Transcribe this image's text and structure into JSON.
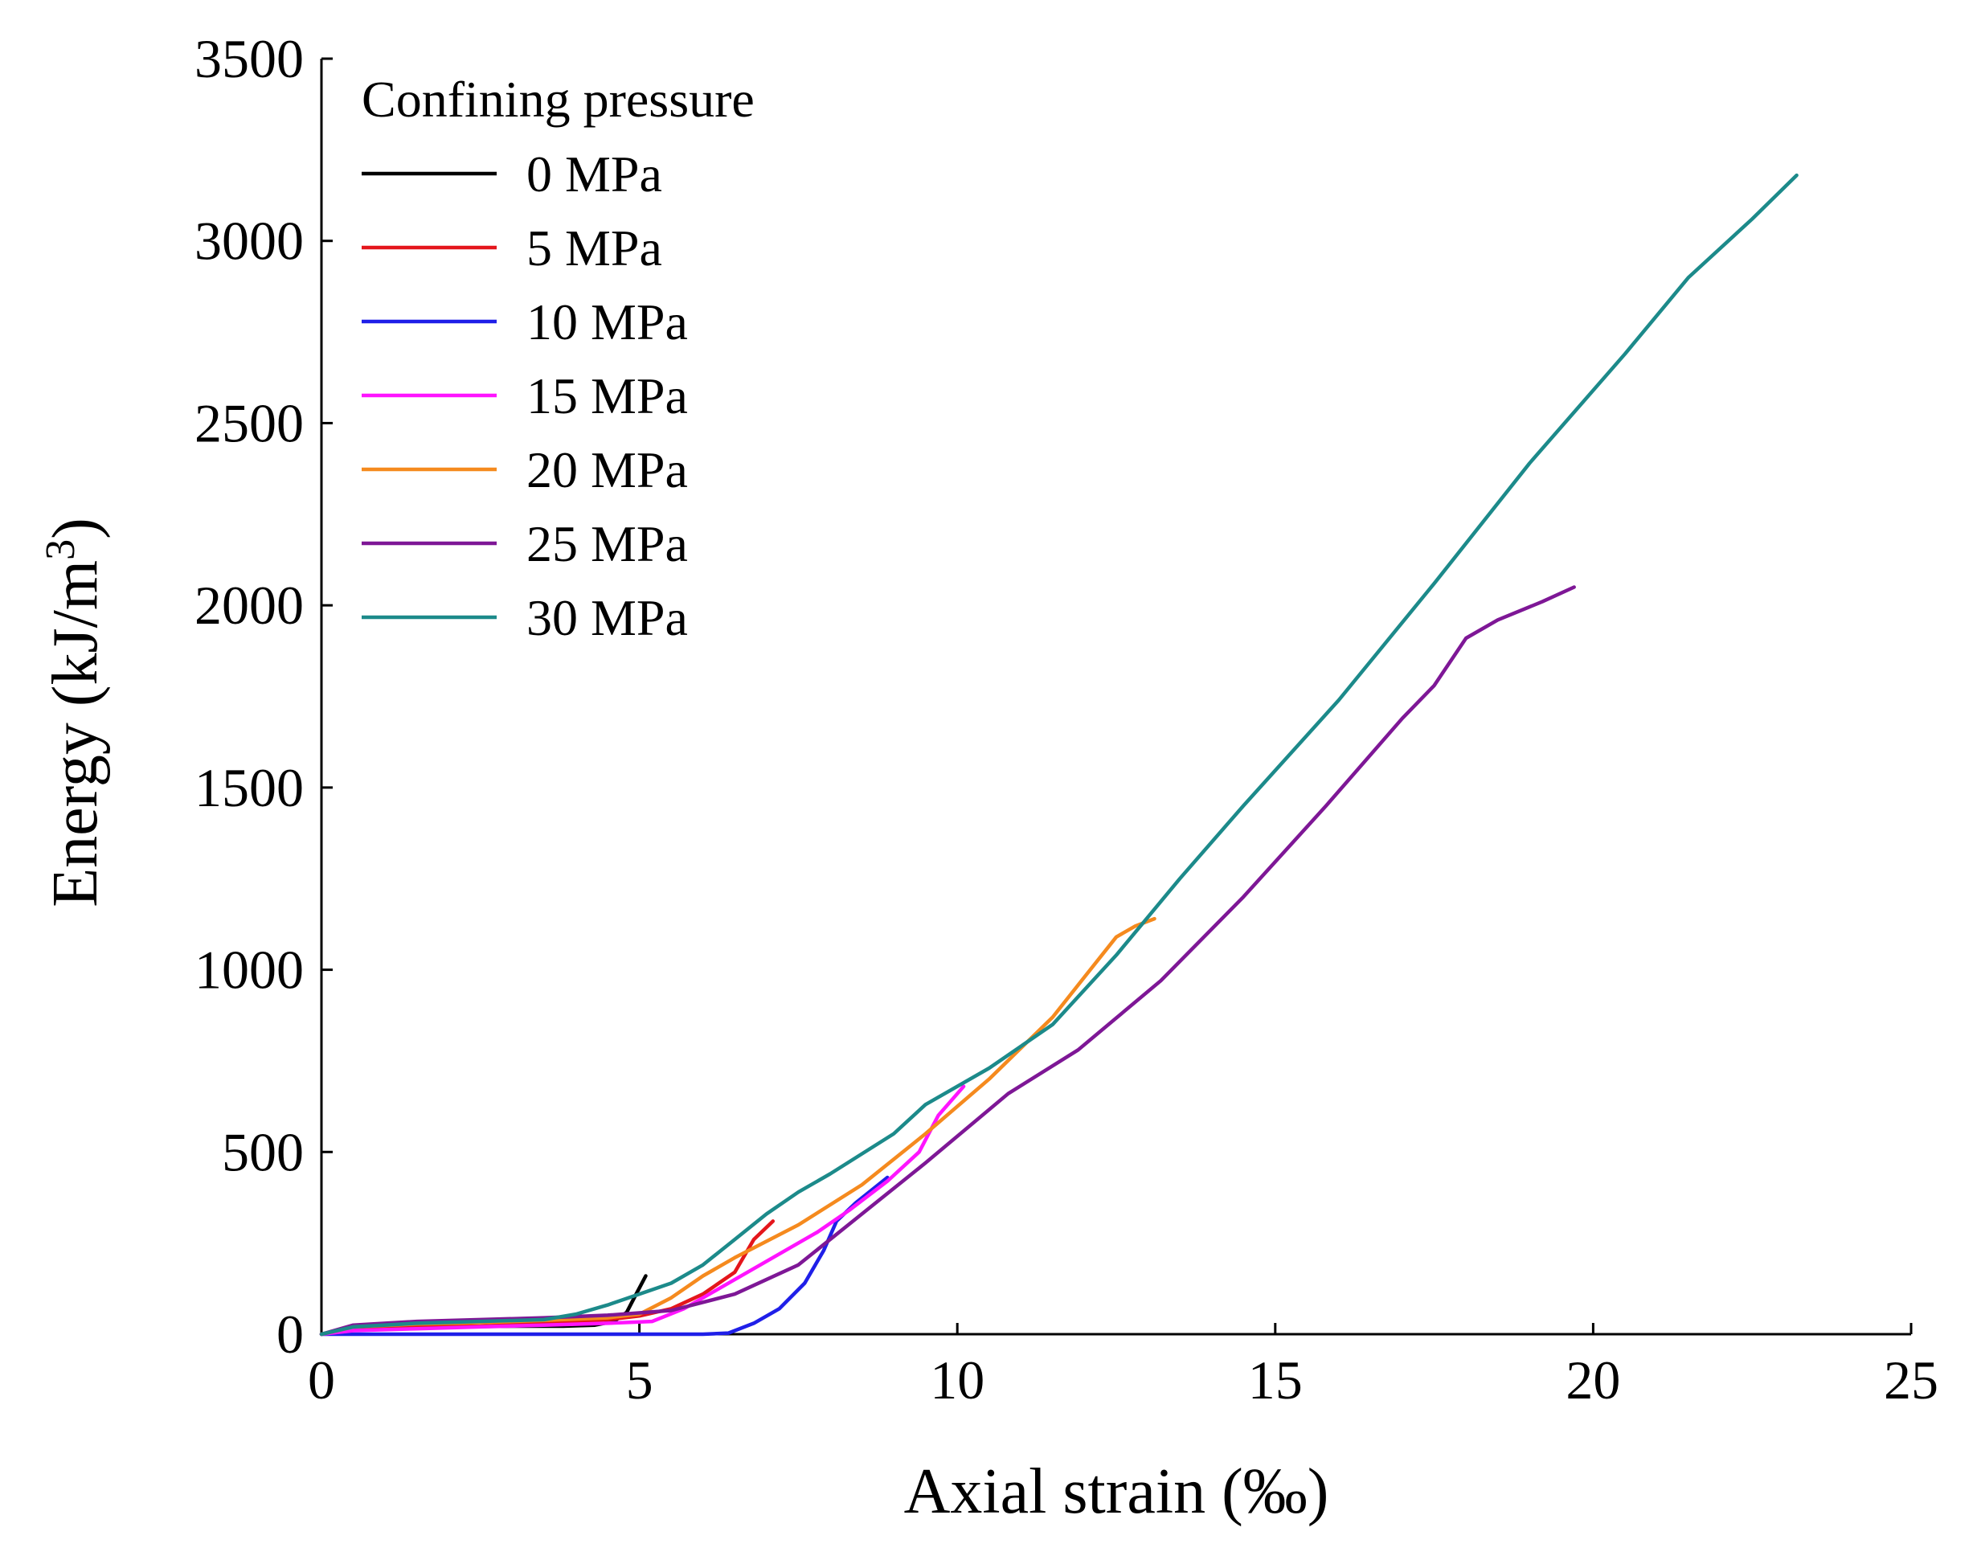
{
  "chart_data": {
    "type": "line",
    "xlabel": "Axial strain (‰)",
    "ylabel_main": "Energy (kJ/m",
    "ylabel_sup": "3",
    "ylabel_close": ")",
    "xlim": [
      0,
      25
    ],
    "ylim": [
      0,
      3500
    ],
    "xticks": [
      0,
      5,
      10,
      15,
      20,
      25
    ],
    "yticks": [
      0,
      500,
      1000,
      1500,
      2000,
      2500,
      3000,
      3500
    ],
    "grid": false,
    "legend": {
      "title": "Confining pressure",
      "position": "top-left"
    },
    "series": [
      {
        "name": "0 MPa",
        "color": "#000000",
        "points": [
          [
            0,
            0
          ],
          [
            0.4,
            15
          ],
          [
            1,
            18
          ],
          [
            2,
            20
          ],
          [
            3,
            22
          ],
          [
            3.8,
            22
          ],
          [
            4.3,
            25
          ],
          [
            4.6,
            35
          ],
          [
            4.8,
            60
          ],
          [
            4.95,
            110
          ],
          [
            5.1,
            160
          ]
        ]
      },
      {
        "name": "5 MPa",
        "color": "#e4161c",
        "points": [
          [
            0,
            0
          ],
          [
            0.5,
            15
          ],
          [
            1.5,
            20
          ],
          [
            2.5,
            22
          ],
          [
            3.5,
            30
          ],
          [
            4.5,
            40
          ],
          [
            5,
            50
          ],
          [
            5.5,
            70
          ],
          [
            6,
            110
          ],
          [
            6.5,
            170
          ],
          [
            6.8,
            260
          ],
          [
            7.1,
            310
          ]
        ]
      },
      {
        "name": "10 MPa",
        "color": "#1f1fe8",
        "points": [
          [
            0,
            0
          ],
          [
            2,
            0
          ],
          [
            4,
            0
          ],
          [
            5,
            0
          ],
          [
            6,
            0
          ],
          [
            6.4,
            3
          ],
          [
            6.8,
            30
          ],
          [
            7.2,
            70
          ],
          [
            7.6,
            140
          ],
          [
            7.9,
            230
          ],
          [
            8.1,
            310
          ],
          [
            8.4,
            360
          ],
          [
            8.9,
            430
          ]
        ]
      },
      {
        "name": "15 MPa",
        "color": "#ff14ff",
        "points": [
          [
            0,
            0
          ],
          [
            0.5,
            10
          ],
          [
            1.5,
            15
          ],
          [
            2.5,
            20
          ],
          [
            3.5,
            25
          ],
          [
            4.5,
            30
          ],
          [
            5.2,
            35
          ],
          [
            5.7,
            70
          ],
          [
            6.3,
            130
          ],
          [
            7,
            200
          ],
          [
            7.8,
            280
          ],
          [
            8.3,
            340
          ],
          [
            8.9,
            420
          ],
          [
            9.4,
            500
          ],
          [
            9.7,
            600
          ],
          [
            10.1,
            680
          ]
        ]
      },
      {
        "name": "20 MPa",
        "color": "#f58a1e",
        "points": [
          [
            0,
            0
          ],
          [
            0.5,
            20
          ],
          [
            1.5,
            28
          ],
          [
            2.5,
            32
          ],
          [
            3.5,
            38
          ],
          [
            4.5,
            45
          ],
          [
            5,
            55
          ],
          [
            5.5,
            100
          ],
          [
            6,
            160
          ],
          [
            6.5,
            210
          ],
          [
            7.5,
            300
          ],
          [
            8.5,
            410
          ],
          [
            9.5,
            550
          ],
          [
            10.5,
            700
          ],
          [
            11.5,
            870
          ],
          [
            12,
            980
          ],
          [
            12.5,
            1090
          ],
          [
            12.8,
            1120
          ],
          [
            13.1,
            1140
          ]
        ]
      },
      {
        "name": "25 MPa",
        "color": "#7e1796",
        "points": [
          [
            0,
            0
          ],
          [
            0.5,
            25
          ],
          [
            1.5,
            35
          ],
          [
            2.5,
            40
          ],
          [
            3.5,
            45
          ],
          [
            4.5,
            52
          ],
          [
            5.5,
            65
          ],
          [
            6.5,
            110
          ],
          [
            7.5,
            190
          ],
          [
            8.5,
            330
          ],
          [
            9.5,
            470
          ],
          [
            10.8,
            660
          ],
          [
            11.9,
            780
          ],
          [
            13.2,
            970
          ],
          [
            14.5,
            1200
          ],
          [
            15.8,
            1450
          ],
          [
            17,
            1690
          ],
          [
            17.5,
            1780
          ],
          [
            18,
            1910
          ],
          [
            18.5,
            1960
          ],
          [
            19.2,
            2010
          ],
          [
            19.7,
            2050
          ]
        ]
      },
      {
        "name": "30 MPa",
        "color": "#1c8a8a",
        "points": [
          [
            0,
            0
          ],
          [
            0.5,
            20
          ],
          [
            1.5,
            30
          ],
          [
            2.5,
            35
          ],
          [
            3.5,
            40
          ],
          [
            4,
            55
          ],
          [
            4.5,
            80
          ],
          [
            5,
            110
          ],
          [
            5.5,
            140
          ],
          [
            6,
            190
          ],
          [
            6.5,
            260
          ],
          [
            7,
            330
          ],
          [
            7.5,
            390
          ],
          [
            8,
            440
          ],
          [
            9,
            550
          ],
          [
            9.5,
            630
          ],
          [
            10.5,
            730
          ],
          [
            11.5,
            850
          ],
          [
            12.5,
            1040
          ],
          [
            13.5,
            1250
          ],
          [
            14.5,
            1450
          ],
          [
            16,
            1740
          ],
          [
            17.5,
            2060
          ],
          [
            19,
            2390
          ],
          [
            20.5,
            2690
          ],
          [
            21.5,
            2900
          ],
          [
            22.5,
            3060
          ],
          [
            23.2,
            3180
          ]
        ]
      }
    ]
  }
}
